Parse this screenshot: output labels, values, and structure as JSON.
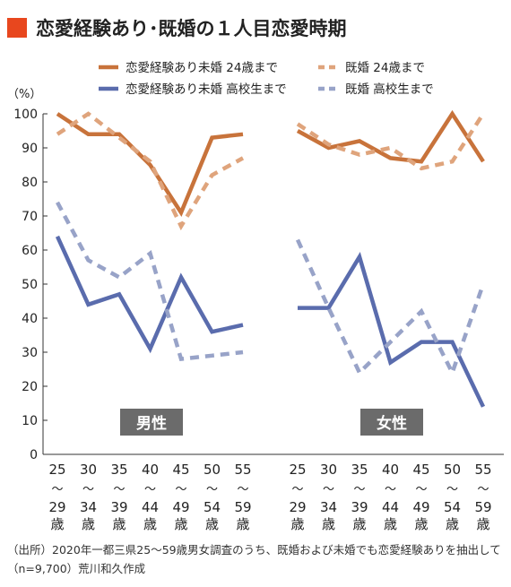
{
  "title": "恋愛経験あり･既婚の１人目恋愛時期",
  "footnote": "（出所）2020年一都三県25～59歳男女調査のうち、既婚および未婚でも恋愛経験ありを抽出して（n=9,700）荒川和久作成",
  "colors": {
    "accent": "#e8471e",
    "orange": "#c8733b",
    "orange_light": "#dfa47c",
    "blue": "#5a6cad",
    "blue_light": "#98a3c8",
    "panel_label_bg": "#6b6b6b"
  },
  "chart_data": {
    "type": "line",
    "ylabel": "（%）",
    "ylim": [
      0,
      100
    ],
    "yticks": [
      0,
      10,
      20,
      30,
      40,
      50,
      60,
      70,
      80,
      90,
      100
    ],
    "grid": false,
    "legend": "top",
    "categories": [
      [
        "25",
        "～",
        "29",
        "歳"
      ],
      [
        "30",
        "～",
        "34",
        "歳"
      ],
      [
        "35",
        "～",
        "39",
        "歳"
      ],
      [
        "40",
        "～",
        "44",
        "歳"
      ],
      [
        "45",
        "～",
        "49",
        "歳"
      ],
      [
        "50",
        "～",
        "54",
        "歳"
      ],
      [
        "55",
        "～",
        "59",
        "歳"
      ]
    ],
    "series_meta": [
      {
        "name": "恋愛経験あり未婚 24歳まで",
        "color": "#c8733b",
        "dashed": false
      },
      {
        "name": "既婚 24歳まで",
        "color": "#dfa47c",
        "dashed": true
      },
      {
        "name": "恋愛経験あり未婚 高校生まで",
        "color": "#5a6cad",
        "dashed": false
      },
      {
        "name": "既婚 高校生まで",
        "color": "#98a3c8",
        "dashed": true
      }
    ],
    "panels": [
      {
        "label": "男性",
        "values": [
          [
            100,
            94,
            94,
            85,
            71,
            93,
            94
          ],
          [
            94,
            100,
            93,
            86,
            67,
            82,
            87
          ],
          [
            64,
            44,
            47,
            31,
            52,
            36,
            38
          ],
          [
            74,
            57,
            52,
            59,
            28,
            29,
            30
          ]
        ]
      },
      {
        "label": "女性",
        "values": [
          [
            95,
            90,
            92,
            87,
            86,
            100,
            86
          ],
          [
            97,
            91,
            88,
            90,
            84,
            86,
            100
          ],
          [
            43,
            43,
            58,
            27,
            33,
            33,
            14
          ],
          [
            63,
            43,
            24,
            33,
            42,
            24,
            50
          ]
        ]
      }
    ]
  }
}
